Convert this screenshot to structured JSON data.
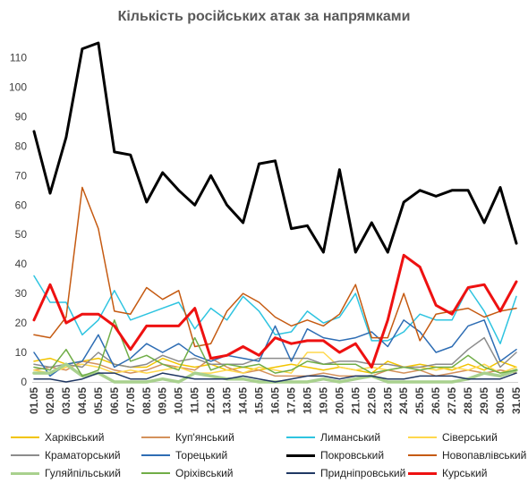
{
  "chart_data": {
    "type": "line",
    "title": "Кількість російських атак за напрямками",
    "xlabel": "",
    "ylabel": "",
    "ylim": [
      0,
      115
    ],
    "yticks": [
      0,
      10,
      20,
      30,
      40,
      50,
      60,
      70,
      80,
      90,
      100,
      110
    ],
    "grid": false,
    "legend_position": "bottom",
    "categories": [
      "01.05",
      "02.05",
      "03.05",
      "04.05",
      "05.05",
      "06.05",
      "07.05",
      "08.05",
      "09.05",
      "10.05",
      "11.05",
      "12.05",
      "13.05",
      "14.05",
      "15.05",
      "16.05",
      "17.05",
      "18.05",
      "19.05",
      "20.05",
      "21.05",
      "22.05",
      "23.05",
      "24.05",
      "25.05",
      "26.05",
      "27.05",
      "28.05",
      "29.05",
      "30.05",
      "31.05"
    ],
    "x_tick_labels": [
      "01.05",
      "03.05",
      "05.05",
      "07.05",
      "09.05",
      "11.05",
      "13.05",
      "15.05",
      "17.05",
      "19.05",
      "21.05",
      "23.05",
      "25.05",
      "27.05",
      "29.05",
      "31.05"
    ],
    "x_tick_labels_alt": [
      "02.05",
      "04.05",
      "06.05",
      "08.05",
      "10.05",
      "12.05",
      "14.05",
      "16.05",
      "18.05",
      "20.05",
      "22.05",
      "24.05",
      "26.05",
      "28.05",
      "30.05"
    ],
    "series": [
      {
        "name": "Харківський",
        "color": "#f2c400",
        "width": 1.5,
        "values": [
          7,
          8,
          6,
          7,
          8,
          6,
          5,
          5,
          8,
          6,
          5,
          6,
          4,
          5,
          4,
          5,
          6,
          5,
          4,
          5,
          4,
          3,
          7,
          5,
          6,
          5,
          4,
          6,
          4,
          7,
          5
        ]
      },
      {
        "name": "Куп'янський",
        "color": "#d4915c",
        "width": 1.5,
        "values": [
          4,
          5,
          4,
          7,
          6,
          4,
          3,
          4,
          6,
          5,
          4,
          8,
          5,
          3,
          4,
          2,
          2,
          2,
          3,
          2,
          2,
          2,
          4,
          3,
          4,
          2,
          3,
          4,
          3,
          4,
          3
        ]
      },
      {
        "name": "Лиманський",
        "color": "#2ec4e0",
        "width": 1.5,
        "values": [
          36,
          27,
          27,
          16,
          21,
          31,
          21,
          23,
          25,
          27,
          18,
          25,
          21,
          29,
          24,
          16,
          17,
          24,
          20,
          22,
          30,
          14,
          14,
          17,
          23,
          21,
          21,
          32,
          24,
          13,
          29
        ]
      },
      {
        "name": "Сіверський",
        "color": "#ffd84d",
        "width": 1.5,
        "values": [
          4,
          3,
          5,
          6,
          5,
          3,
          4,
          3,
          4,
          5,
          3,
          3,
          4,
          3,
          5,
          4,
          3,
          10,
          10,
          5,
          4,
          5,
          4,
          5,
          5,
          4,
          5,
          4,
          6,
          3,
          5
        ]
      },
      {
        "name": "Краматорський",
        "color": "#8c8c8c",
        "width": 1.5,
        "values": [
          6,
          5,
          6,
          5,
          10,
          6,
          5,
          6,
          9,
          7,
          8,
          6,
          6,
          6,
          8,
          8,
          8,
          8,
          6,
          7,
          7,
          6,
          6,
          5,
          5,
          6,
          6,
          11,
          15,
          5,
          10
        ]
      },
      {
        "name": "Торецький",
        "color": "#2e6db4",
        "width": 1.5,
        "values": [
          10,
          2,
          6,
          7,
          16,
          5,
          8,
          13,
          10,
          13,
          9,
          7,
          9,
          8,
          7,
          19,
          7,
          18,
          15,
          14,
          15,
          17,
          12,
          21,
          17,
          10,
          12,
          19,
          21,
          7,
          11
        ]
      },
      {
        "name": "Покровський",
        "color": "#000000",
        "width": 3,
        "values": [
          85,
          64,
          83,
          113,
          115,
          78,
          77,
          61,
          71,
          65,
          60,
          70,
          60,
          54,
          74,
          75,
          52,
          53,
          44,
          72,
          44,
          54,
          44,
          61,
          65,
          63,
          65,
          65,
          54,
          66,
          47
        ]
      },
      {
        "name": "Новопавлівський",
        "color": "#c55a11",
        "width": 1.5,
        "values": [
          16,
          15,
          22,
          66,
          52,
          24,
          23,
          32,
          28,
          31,
          12,
          13,
          24,
          30,
          27,
          22,
          19,
          21,
          19,
          23,
          33,
          15,
          15,
          30,
          14,
          23,
          24,
          25,
          22,
          24,
          25
        ]
      },
      {
        "name": "Гуляйпільський",
        "color": "#a9d18e",
        "width": 3.5,
        "values": [
          3,
          3,
          6,
          2,
          3,
          0,
          0,
          0,
          1,
          0,
          3,
          2,
          1,
          1,
          0,
          0,
          0,
          0,
          1,
          0,
          1,
          2,
          0,
          0,
          0,
          0,
          0,
          1,
          3,
          2,
          4
        ]
      },
      {
        "name": "Оріхівський",
        "color": "#70ad47",
        "width": 1.5,
        "values": [
          5,
          4,
          11,
          2,
          4,
          21,
          7,
          9,
          6,
          4,
          15,
          4,
          6,
          5,
          6,
          3,
          4,
          7,
          6,
          6,
          6,
          3,
          4,
          5,
          4,
          5,
          5,
          9,
          5,
          3,
          4
        ]
      },
      {
        "name": "Придніпровський",
        "color": "#203864",
        "width": 1.5,
        "values": [
          1,
          1,
          0,
          1,
          3,
          3,
          1,
          1,
          3,
          2,
          1,
          1,
          1,
          2,
          1,
          0,
          1,
          2,
          2,
          1,
          2,
          2,
          1,
          1,
          2,
          2,
          2,
          1,
          1,
          1,
          3
        ]
      },
      {
        "name": "Курський",
        "color": "#ee1111",
        "width": 3,
        "values": [
          21,
          33,
          20,
          23,
          23,
          19,
          11,
          19,
          19,
          19,
          25,
          8,
          9,
          12,
          9,
          15,
          13,
          14,
          14,
          10,
          13,
          5,
          21,
          43,
          39,
          26,
          23,
          32,
          33,
          24,
          34
        ]
      }
    ]
  }
}
